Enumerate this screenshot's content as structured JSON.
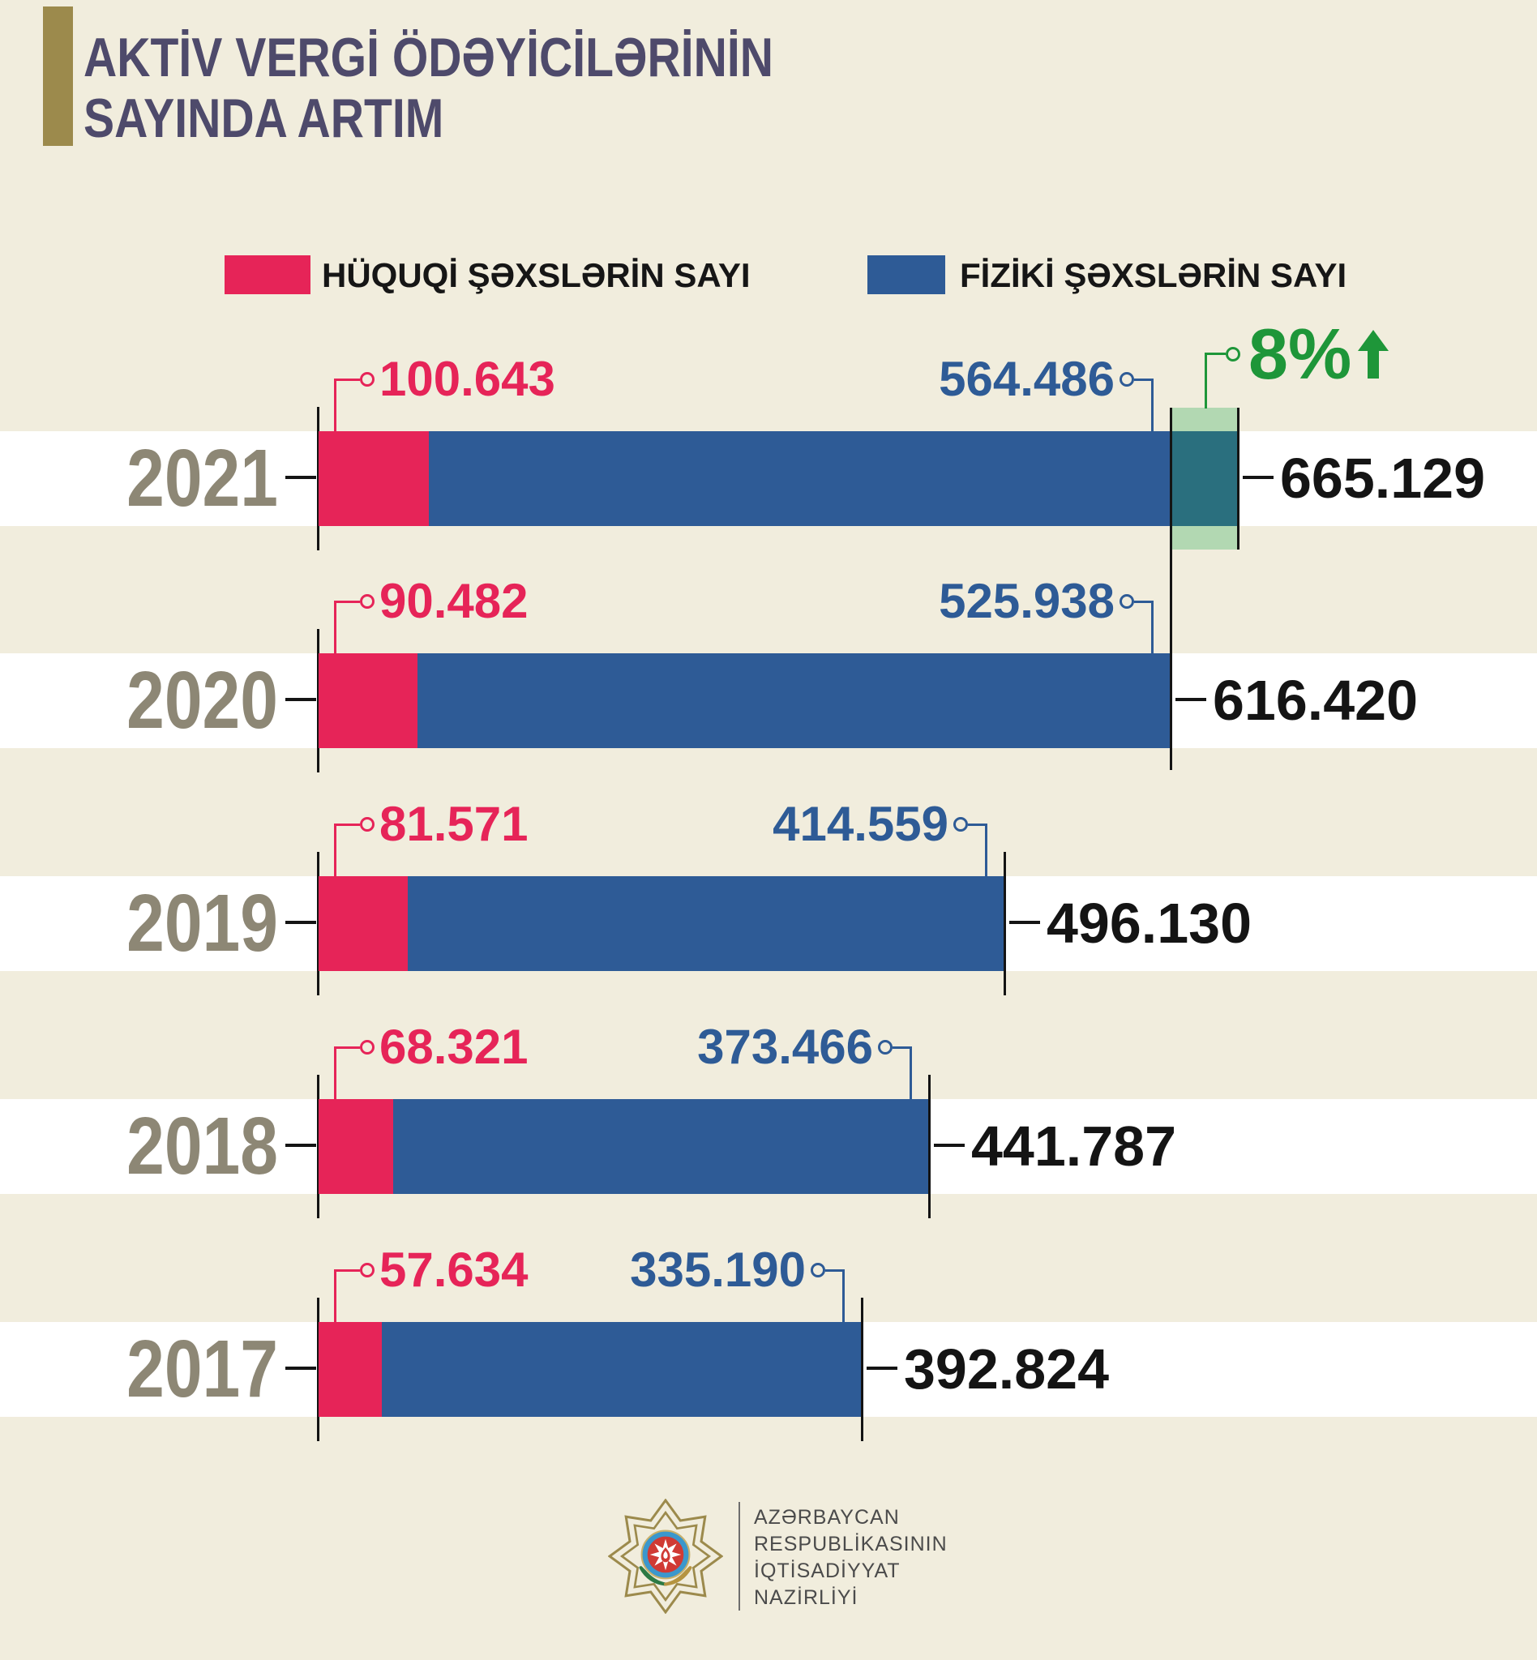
{
  "title": {
    "line1": "AKTİV VERGİ ÖDƏYİCİLƏRİNİN",
    "line2": "SAYINDA ARTIM"
  },
  "legend": [
    {
      "label": "HÜQUQİ ŞƏXSLƏRİN SAYI",
      "color": "#e62458"
    },
    {
      "label": "FİZİKİ ŞƏXSLƏRİN SAYI",
      "color": "#2e5b96"
    }
  ],
  "growth": {
    "label": "8%",
    "arrow": "up",
    "color": "#1e9639",
    "meaning": "increase of total vs 2020"
  },
  "rows": [
    {
      "year": "2021",
      "legal": "100.643",
      "individual": "564.486",
      "total": "665.129",
      "highlight": true
    },
    {
      "year": "2020",
      "legal": "90.482",
      "individual": "525.938",
      "total": "616.420",
      "highlight": false
    },
    {
      "year": "2019",
      "legal": "81.571",
      "individual": "414.559",
      "total": "496.130",
      "highlight": false
    },
    {
      "year": "2018",
      "legal": "68.321",
      "individual": "373.466",
      "total": "441.787",
      "highlight": false
    },
    {
      "year": "2017",
      "legal": "57.634",
      "individual": "335.190",
      "total": "392.824",
      "highlight": false
    }
  ],
  "chart_data": {
    "type": "bar",
    "orientation": "horizontal",
    "stacked": true,
    "title": "AKTİV VERGİ ÖDƏYİCİLƏRİNİN SAYINDA ARTIM",
    "categories": [
      "2021",
      "2020",
      "2019",
      "2018",
      "2017"
    ],
    "series": [
      {
        "name": "HÜQUQİ ŞƏXSLƏRİN SAYI",
        "color": "#e62458",
        "values": [
          100643,
          90482,
          81571,
          68321,
          57634
        ]
      },
      {
        "name": "FİZİKİ ŞƏXSLƏRİN SAYI",
        "color": "#2e5b96",
        "values": [
          564486,
          525938,
          414559,
          373466,
          335190
        ]
      }
    ],
    "totals": [
      665129,
      616420,
      496130,
      441787,
      392824
    ],
    "annotations": [
      {
        "target": "2021",
        "text": "8%",
        "arrow": "up",
        "meaning": "growth of total taxpayers vs 2020, highlighted segment from 616420 to 665129"
      }
    ],
    "legend_position": "top",
    "value_labels": "dotted thousands separators"
  },
  "footer": {
    "lines": [
      "AZƏRBAYCAN",
      "RESPUBLİKASININ",
      "İQTİSADİYYAT",
      "NAZİRLİYİ"
    ],
    "emblem": "ministry-of-economy-emblem"
  },
  "colors": {
    "pink": "#e62458",
    "blue": "#2e5b96",
    "teal": "#2a6f7e",
    "lightgreen": "#b2d8b2",
    "green": "#1e9639",
    "cream": "#f1eddd",
    "gold": "#9c8a4c",
    "title": "#4e4a6b",
    "year": "#8d8775",
    "ink": "#141414"
  }
}
